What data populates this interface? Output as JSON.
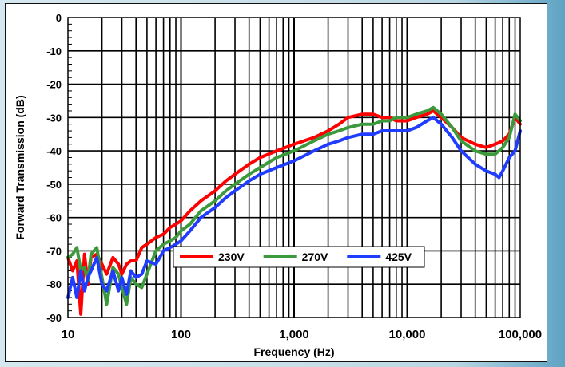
{
  "chart_data": {
    "type": "line",
    "title": "",
    "xlabel": "Frequency (Hz)",
    "ylabel": "Forward Transmission (dB)",
    "xscale": "log",
    "xlim": [
      10,
      100000
    ],
    "ylim": [
      -90,
      0
    ],
    "x_tick_labels": [
      "10",
      "100",
      "1,000",
      "10,000",
      "100,000"
    ],
    "y_tick_labels": [
      "0",
      "-10",
      "-20",
      "-30",
      "-40",
      "-50",
      "-60",
      "-70",
      "-80",
      "-90"
    ],
    "grid": true,
    "legend": "center, inside plot",
    "series": [
      {
        "name": "230V",
        "color": "#ff0000",
        "points": [
          [
            10,
            -72
          ],
          [
            11,
            -76
          ],
          [
            12,
            -73
          ],
          [
            13,
            -89
          ],
          [
            14,
            -71
          ],
          [
            15,
            -80
          ],
          [
            16,
            -72
          ],
          [
            18,
            -71
          ],
          [
            20,
            -74
          ],
          [
            22,
            -77
          ],
          [
            25,
            -72
          ],
          [
            28,
            -74
          ],
          [
            30,
            -77
          ],
          [
            33,
            -74
          ],
          [
            36,
            -73
          ],
          [
            40,
            -73
          ],
          [
            45,
            -69
          ],
          [
            50,
            -68
          ],
          [
            60,
            -66
          ],
          [
            70,
            -65
          ],
          [
            80,
            -63
          ],
          [
            90,
            -62
          ],
          [
            100,
            -61
          ],
          [
            120,
            -58
          ],
          [
            150,
            -55
          ],
          [
            200,
            -52
          ],
          [
            250,
            -49
          ],
          [
            300,
            -47
          ],
          [
            400,
            -44
          ],
          [
            500,
            -42
          ],
          [
            700,
            -40
          ],
          [
            1000,
            -38
          ],
          [
            1500,
            -36
          ],
          [
            2000,
            -34
          ],
          [
            2500,
            -32
          ],
          [
            3000,
            -30
          ],
          [
            4000,
            -29
          ],
          [
            5000,
            -29
          ],
          [
            6000,
            -30
          ],
          [
            7000,
            -30
          ],
          [
            8000,
            -31
          ],
          [
            10000,
            -31
          ],
          [
            12000,
            -30
          ],
          [
            15000,
            -29
          ],
          [
            17000,
            -28
          ],
          [
            20000,
            -30
          ],
          [
            25000,
            -33
          ],
          [
            30000,
            -36
          ],
          [
            40000,
            -38
          ],
          [
            50000,
            -39
          ],
          [
            60000,
            -38
          ],
          [
            70000,
            -37
          ],
          [
            80000,
            -35
          ],
          [
            90000,
            -30
          ],
          [
            100000,
            -32
          ]
        ]
      },
      {
        "name": "270V",
        "color": "#3c9a3c",
        "points": [
          [
            10,
            -72
          ],
          [
            11,
            -71
          ],
          [
            12,
            -69
          ],
          [
            13,
            -76
          ],
          [
            14,
            -75
          ],
          [
            15,
            -79
          ],
          [
            16,
            -71
          ],
          [
            18,
            -69
          ],
          [
            20,
            -78
          ],
          [
            22,
            -86
          ],
          [
            25,
            -75
          ],
          [
            28,
            -77
          ],
          [
            30,
            -81
          ],
          [
            33,
            -86
          ],
          [
            36,
            -78
          ],
          [
            40,
            -80
          ],
          [
            45,
            -81
          ],
          [
            50,
            -77
          ],
          [
            60,
            -70
          ],
          [
            70,
            -68
          ],
          [
            80,
            -67
          ],
          [
            90,
            -66
          ],
          [
            100,
            -64
          ],
          [
            120,
            -62
          ],
          [
            150,
            -58
          ],
          [
            200,
            -55
          ],
          [
            250,
            -52
          ],
          [
            300,
            -50
          ],
          [
            400,
            -47
          ],
          [
            500,
            -45
          ],
          [
            700,
            -42
          ],
          [
            1000,
            -40
          ],
          [
            1500,
            -37
          ],
          [
            2000,
            -35
          ],
          [
            2500,
            -34
          ],
          [
            3000,
            -33
          ],
          [
            4000,
            -32
          ],
          [
            5000,
            -32
          ],
          [
            6000,
            -31
          ],
          [
            7000,
            -31
          ],
          [
            8000,
            -30
          ],
          [
            10000,
            -30
          ],
          [
            12000,
            -29
          ],
          [
            15000,
            -28
          ],
          [
            17000,
            -27
          ],
          [
            20000,
            -29
          ],
          [
            25000,
            -33
          ],
          [
            30000,
            -37
          ],
          [
            40000,
            -40
          ],
          [
            50000,
            -41
          ],
          [
            60000,
            -41
          ],
          [
            70000,
            -39
          ],
          [
            80000,
            -36
          ],
          [
            90000,
            -29
          ],
          [
            100000,
            -31
          ]
        ]
      },
      {
        "name": "425V",
        "color": "#1f3cff",
        "points": [
          [
            10,
            -84
          ],
          [
            11,
            -78
          ],
          [
            12,
            -84
          ],
          [
            13,
            -76
          ],
          [
            14,
            -82
          ],
          [
            15,
            -78
          ],
          [
            16,
            -76
          ],
          [
            18,
            -72
          ],
          [
            20,
            -80
          ],
          [
            22,
            -82
          ],
          [
            25,
            -76
          ],
          [
            28,
            -82
          ],
          [
            30,
            -78
          ],
          [
            33,
            -83
          ],
          [
            36,
            -76
          ],
          [
            40,
            -78
          ],
          [
            45,
            -77
          ],
          [
            50,
            -73
          ],
          [
            60,
            -74
          ],
          [
            70,
            -70
          ],
          [
            80,
            -69
          ],
          [
            90,
            -68
          ],
          [
            100,
            -67
          ],
          [
            120,
            -64
          ],
          [
            150,
            -60
          ],
          [
            200,
            -57
          ],
          [
            250,
            -54
          ],
          [
            300,
            -52
          ],
          [
            400,
            -49
          ],
          [
            500,
            -47
          ],
          [
            700,
            -45
          ],
          [
            1000,
            -43
          ],
          [
            1500,
            -40
          ],
          [
            2000,
            -38
          ],
          [
            2500,
            -37
          ],
          [
            3000,
            -36
          ],
          [
            4000,
            -35
          ],
          [
            5000,
            -35
          ],
          [
            6000,
            -34
          ],
          [
            7000,
            -34
          ],
          [
            8000,
            -34
          ],
          [
            10000,
            -34
          ],
          [
            12000,
            -33
          ],
          [
            15000,
            -31
          ],
          [
            17000,
            -30
          ],
          [
            20000,
            -32
          ],
          [
            25000,
            -36
          ],
          [
            30000,
            -40
          ],
          [
            40000,
            -44
          ],
          [
            50000,
            -46
          ],
          [
            60000,
            -47
          ],
          [
            65000,
            -48
          ],
          [
            70000,
            -46
          ],
          [
            80000,
            -42
          ],
          [
            90000,
            -40
          ],
          [
            100000,
            -34
          ]
        ]
      }
    ]
  }
}
